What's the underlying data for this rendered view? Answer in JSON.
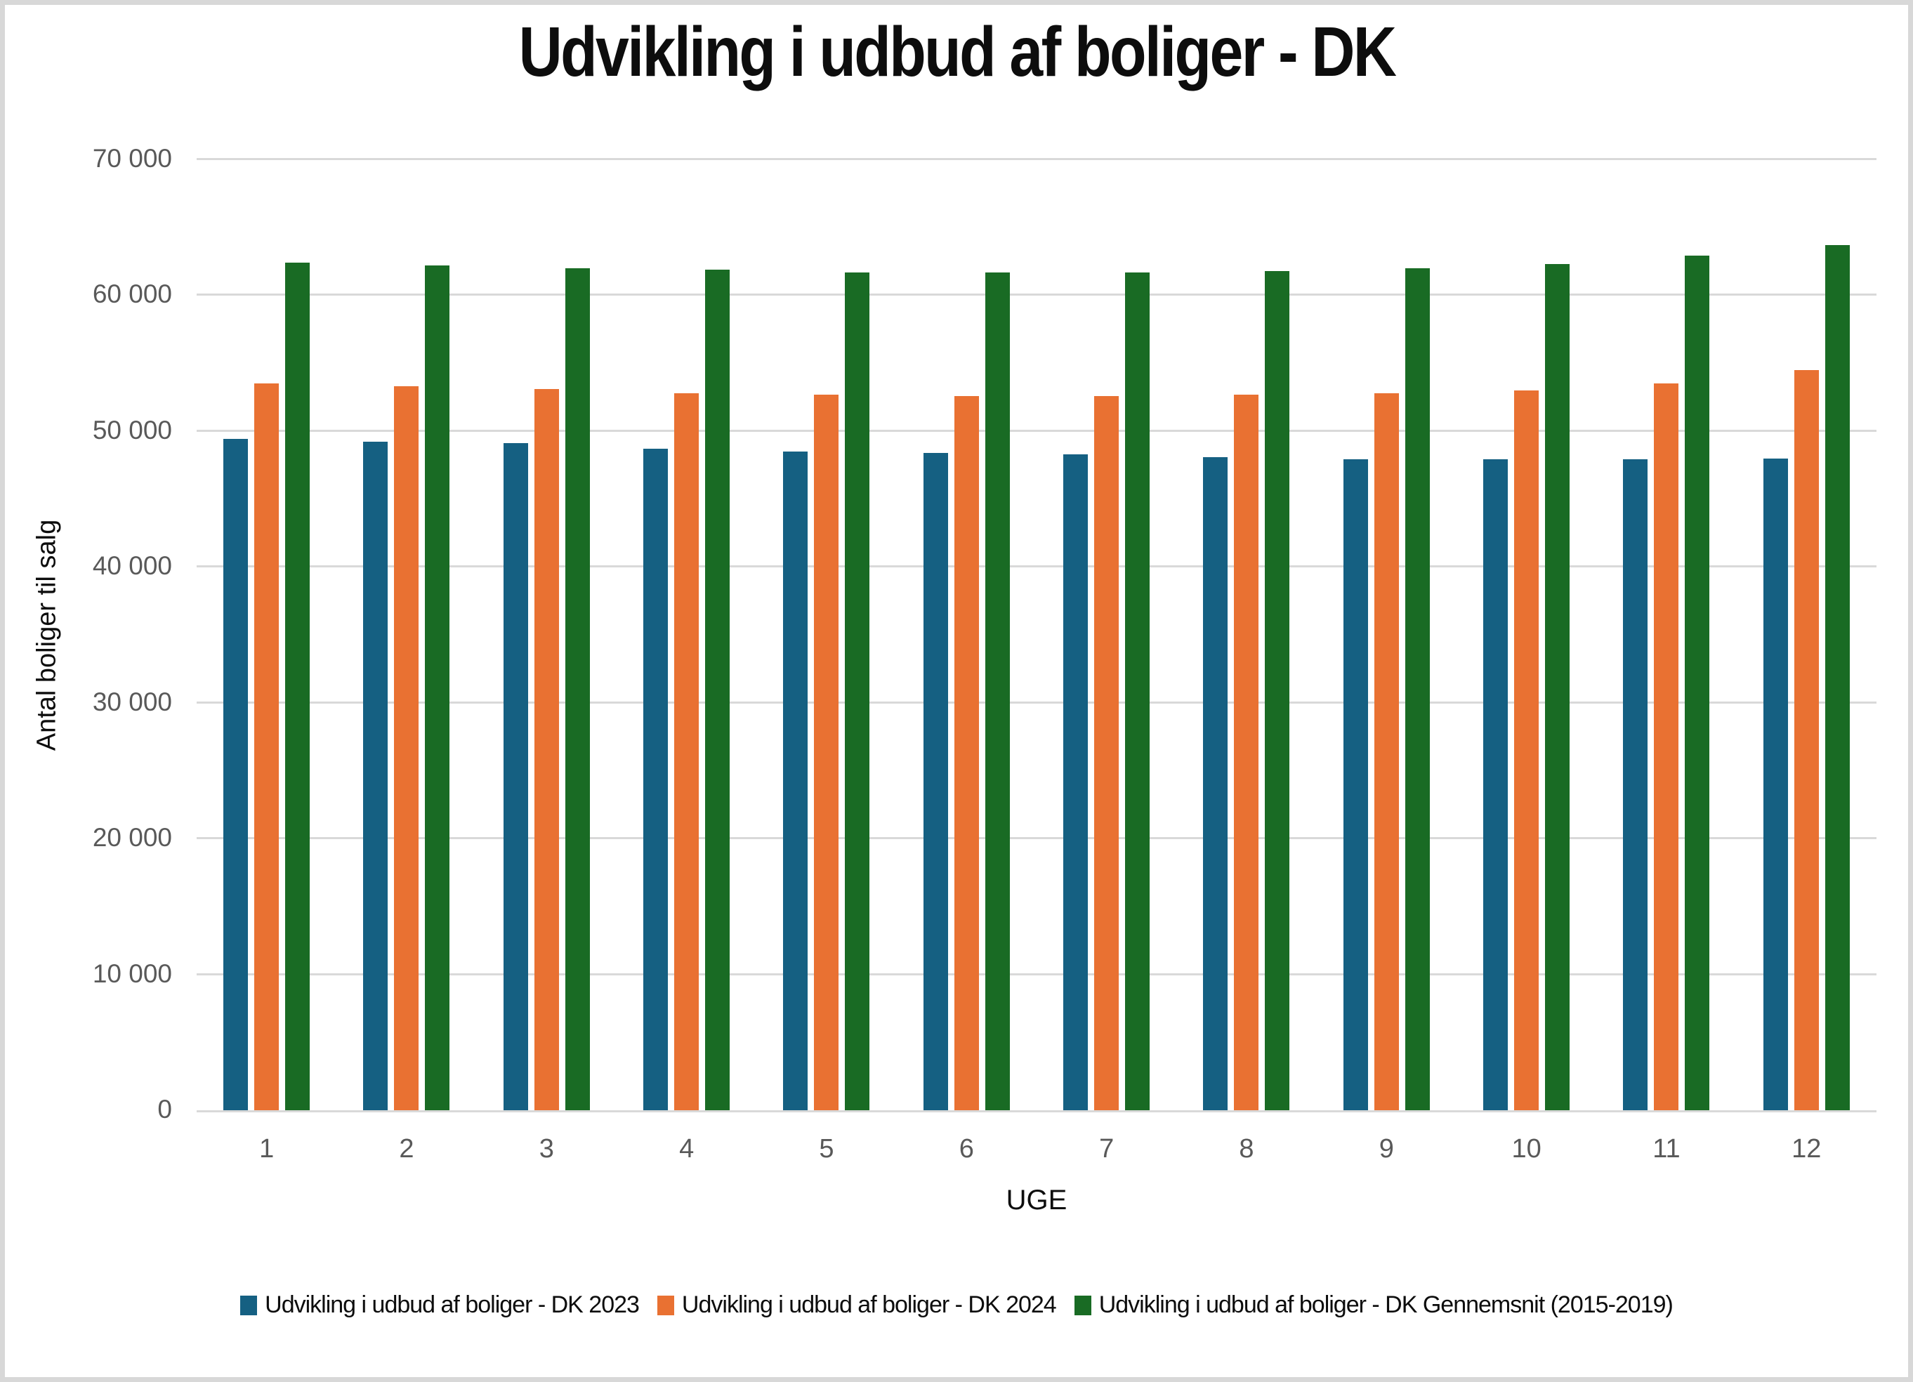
{
  "chart": {
    "title": "Udvikling i udbud af boliger - DK"
  },
  "chart_data": {
    "type": "bar",
    "title": "Udvikling i udbud af boliger - DK",
    "xlabel": "UGE",
    "ylabel": "Antal boliger til salg",
    "ylim": [
      0,
      70000
    ],
    "grid": true,
    "legend_position": "bottom",
    "yticks": [
      0,
      10000,
      20000,
      30000,
      40000,
      50000,
      60000,
      70000
    ],
    "ytick_labels": [
      "0",
      "10 000",
      "20 000",
      "30 000",
      "40 000",
      "50 000",
      "60 000",
      "70 000"
    ],
    "categories": [
      "1",
      "2",
      "3",
      "4",
      "5",
      "6",
      "7",
      "8",
      "9",
      "10",
      "11",
      "12"
    ],
    "series": [
      {
        "name": "Udvikling i udbud af boliger - DK 2023",
        "color": "#156082",
        "values": [
          49400,
          49200,
          49100,
          48700,
          48500,
          48400,
          48300,
          48100,
          47900,
          47900,
          47900,
          48000
        ]
      },
      {
        "name": "Udvikling i udbud af boliger - DK 2024",
        "color": "#E97132",
        "values": [
          53500,
          53300,
          53100,
          52800,
          52700,
          52600,
          52600,
          52700,
          52800,
          53000,
          53500,
          54500
        ]
      },
      {
        "name": "Udvikling i udbud af boliger - DK Gennemsnit (2015-2019)",
        "color": "#196B24",
        "values": [
          62400,
          62200,
          62000,
          61900,
          61700,
          61700,
          61700,
          61800,
          62000,
          62300,
          62900,
          63700
        ]
      }
    ],
    "style_colors": {
      "gridline": "#d9d9d9",
      "axis_text": "#595959",
      "frame": "#d8d8d8",
      "title_text": "#0d0d0d"
    }
  }
}
